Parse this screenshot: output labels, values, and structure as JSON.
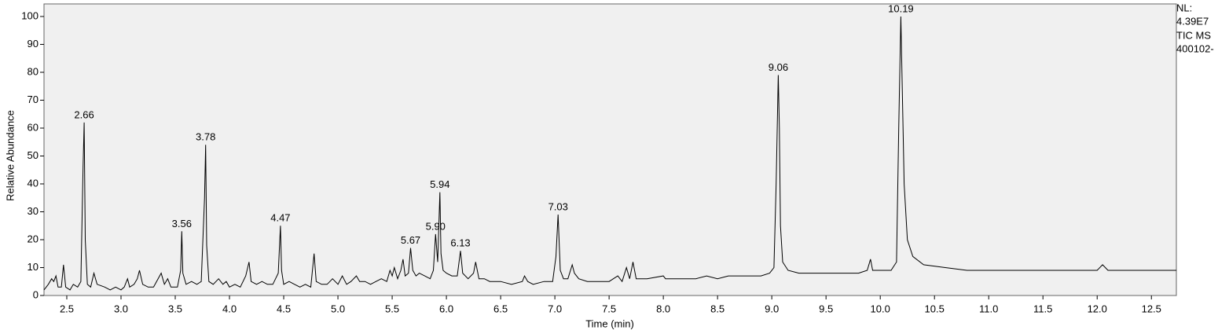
{
  "chart_data": {
    "type": "line",
    "y_label": "Relative Abundance",
    "x_label": "Time (min)",
    "info": [
      "NL:",
      "4.39E7",
      "TIC  MS",
      "400102-"
    ],
    "xlim": [
      2.29,
      12.73
    ],
    "ylim": [
      0,
      104.5
    ],
    "xticks": [
      {
        "value": 2.5,
        "label": "2.5"
      },
      {
        "value": 3.0,
        "label": "3.0"
      },
      {
        "value": 3.5,
        "label": "3.5"
      },
      {
        "value": 4.0,
        "label": "4.0"
      },
      {
        "value": 4.5,
        "label": "4.5"
      },
      {
        "value": 5.0,
        "label": "5.0"
      },
      {
        "value": 5.5,
        "label": "5.5"
      },
      {
        "value": 6.0,
        "label": "6.0"
      },
      {
        "value": 6.5,
        "label": "6.5"
      },
      {
        "value": 7.0,
        "label": "7.0"
      },
      {
        "value": 7.5,
        "label": "7.5"
      },
      {
        "value": 8.0,
        "label": "8.0"
      },
      {
        "value": 8.5,
        "label": "8.5"
      },
      {
        "value": 9.0,
        "label": "9.0"
      },
      {
        "value": 9.5,
        "label": "9.5"
      },
      {
        "value": 10.0,
        "label": "10.0"
      },
      {
        "value": 10.5,
        "label": "10.5"
      },
      {
        "value": 11.0,
        "label": "11.0"
      },
      {
        "value": 11.5,
        "label": "11.5"
      },
      {
        "value": 12.0,
        "label": "12.0"
      },
      {
        "value": 12.5,
        "label": "12.5"
      }
    ],
    "yticks": [
      0,
      10,
      20,
      30,
      40,
      50,
      60,
      70,
      80,
      90,
      100
    ],
    "color": "#000000",
    "x": [
      2.29,
      2.33,
      2.36,
      2.38,
      2.4,
      2.42,
      2.45,
      2.47,
      2.49,
      2.53,
      2.56,
      2.6,
      2.63,
      2.65,
      2.66,
      2.67,
      2.69,
      2.72,
      2.75,
      2.78,
      2.85,
      2.9,
      2.95,
      3.0,
      3.03,
      3.06,
      3.08,
      3.12,
      3.15,
      3.17,
      3.2,
      3.25,
      3.3,
      3.37,
      3.4,
      3.43,
      3.46,
      3.52,
      3.55,
      3.56,
      3.57,
      3.6,
      3.65,
      3.7,
      3.74,
      3.77,
      3.78,
      3.79,
      3.81,
      3.85,
      3.9,
      3.94,
      3.97,
      4.0,
      4.05,
      4.1,
      4.15,
      4.18,
      4.2,
      4.25,
      4.3,
      4.35,
      4.4,
      4.45,
      4.47,
      4.48,
      4.5,
      4.55,
      4.6,
      4.65,
      4.7,
      4.75,
      4.78,
      4.8,
      4.85,
      4.9,
      4.95,
      5.0,
      5.04,
      5.08,
      5.12,
      5.17,
      5.2,
      5.25,
      5.3,
      5.35,
      5.4,
      5.45,
      5.48,
      5.5,
      5.52,
      5.55,
      5.58,
      5.6,
      5.62,
      5.65,
      5.67,
      5.69,
      5.72,
      5.75,
      5.8,
      5.85,
      5.88,
      5.9,
      5.92,
      5.94,
      5.95,
      5.97,
      6.0,
      6.05,
      6.1,
      6.13,
      6.15,
      6.2,
      6.25,
      6.27,
      6.3,
      6.35,
      6.4,
      6.5,
      6.6,
      6.7,
      6.72,
      6.75,
      6.8,
      6.9,
      6.98,
      7.01,
      7.03,
      7.05,
      7.08,
      7.12,
      7.16,
      7.18,
      7.22,
      7.3,
      7.4,
      7.5,
      7.58,
      7.62,
      7.66,
      7.69,
      7.72,
      7.75,
      7.85,
      8.0,
      8.02,
      8.1,
      8.2,
      8.3,
      8.4,
      8.5,
      8.6,
      8.7,
      8.8,
      8.9,
      8.98,
      9.02,
      9.04,
      9.06,
      9.07,
      9.08,
      9.1,
      9.15,
      9.25,
      9.4,
      9.6,
      9.8,
      9.88,
      9.91,
      9.93,
      10.0,
      10.1,
      10.15,
      10.17,
      10.19,
      10.2,
      10.22,
      10.25,
      10.3,
      10.4,
      10.6,
      10.8,
      11.0,
      11.2,
      11.5,
      11.8,
      12.0,
      12.05,
      12.1,
      12.3,
      12.5,
      12.73
    ],
    "values": [
      2,
      4,
      6,
      5,
      7,
      3,
      3,
      11,
      3,
      2,
      4,
      3,
      5,
      46,
      62,
      20,
      4,
      3,
      8,
      4,
      3,
      2,
      3,
      2,
      3,
      6,
      3,
      4,
      6,
      9,
      4,
      3,
      3,
      8,
      4,
      6,
      3,
      3,
      9,
      23,
      8,
      4,
      5,
      4,
      5,
      35,
      54,
      18,
      5,
      4,
      6,
      4,
      5,
      3,
      4,
      3,
      7,
      12,
      5,
      4,
      5,
      4,
      4,
      8,
      25,
      9,
      4,
      5,
      4,
      3,
      4,
      3,
      15,
      5,
      4,
      4,
      6,
      4,
      7,
      4,
      5,
      7,
      5,
      5,
      4,
      5,
      6,
      5,
      9,
      7,
      10,
      6,
      9,
      13,
      7,
      8,
      17,
      9,
      7,
      8,
      7,
      6,
      9,
      22,
      12,
      37,
      15,
      9,
      8,
      7,
      7,
      16,
      8,
      6,
      8,
      12,
      6,
      6,
      5,
      5,
      4,
      5,
      7,
      5,
      4,
      5,
      5,
      14,
      29,
      9,
      6,
      6,
      11,
      8,
      6,
      5,
      5,
      5,
      7,
      5,
      10,
      6,
      12,
      6,
      6,
      7,
      6,
      6,
      6,
      6,
      7,
      6,
      7,
      7,
      7,
      7,
      8,
      10,
      40,
      79,
      60,
      25,
      12,
      9,
      8,
      8,
      8,
      8,
      9,
      13,
      9,
      9,
      9,
      12,
      60,
      100,
      80,
      40,
      20,
      14,
      11,
      10,
      9,
      9,
      9,
      9,
      9,
      9,
      11,
      9,
      9,
      9,
      9
    ],
    "peaks": [
      {
        "label": "2.66",
        "x": 2.66,
        "y": 62
      },
      {
        "label": "3.56",
        "x": 3.56,
        "y": 23
      },
      {
        "label": "3.78",
        "x": 3.78,
        "y": 54
      },
      {
        "label": "4.47",
        "x": 4.47,
        "y": 25
      },
      {
        "label": "5.67",
        "x": 5.67,
        "y": 17
      },
      {
        "label": "5.90",
        "x": 5.9,
        "y": 22
      },
      {
        "label": "5.94",
        "x": 5.94,
        "y": 37
      },
      {
        "label": "6.13",
        "x": 6.13,
        "y": 16
      },
      {
        "label": "7.03",
        "x": 7.03,
        "y": 29
      },
      {
        "label": "9.06",
        "x": 9.06,
        "y": 79
      },
      {
        "label": "10.19",
        "x": 10.19,
        "y": 100
      }
    ]
  }
}
